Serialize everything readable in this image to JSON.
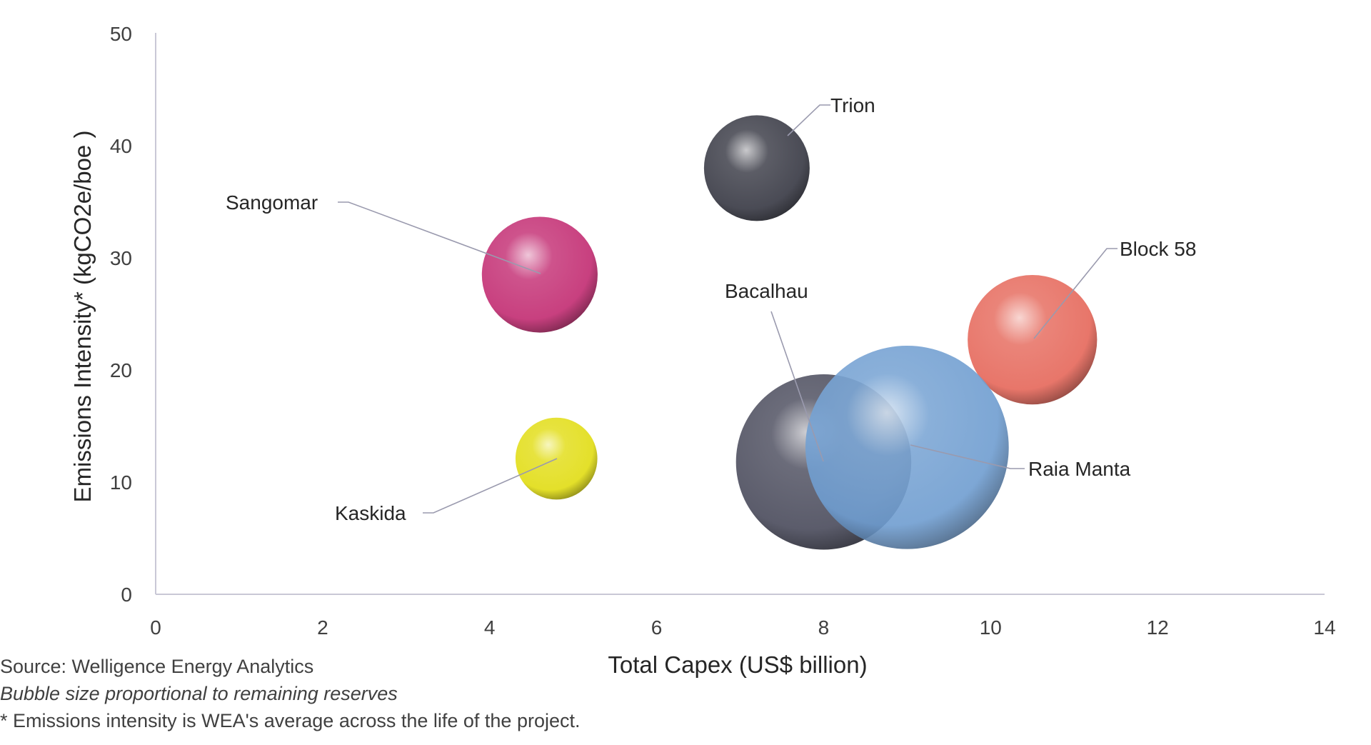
{
  "chart_data": {
    "type": "scatter",
    "subtype": "bubble",
    "title": "",
    "xlabel": "Total Capex (US$ billion)",
    "ylabel": "Emissions Intensity* (kgCO2e/boe )",
    "xlim": [
      0,
      14
    ],
    "ylim": [
      0,
      50
    ],
    "x_ticks": [
      0,
      2,
      4,
      6,
      8,
      10,
      12,
      14
    ],
    "y_ticks": [
      0,
      10,
      20,
      30,
      40,
      50
    ],
    "grid": false,
    "legend": "none",
    "points": [
      {
        "label": "Trion",
        "x": 7.2,
        "y": 38,
        "size": 1.0,
        "color": "#4a4b55"
      },
      {
        "label": "Sangomar",
        "x": 4.6,
        "y": 28.5,
        "size": 1.2,
        "color": "#c8407f"
      },
      {
        "label": "Block 58",
        "x": 10.5,
        "y": 22.7,
        "size": 1.5,
        "color": "#e8766a"
      },
      {
        "label": "Kaskida",
        "x": 4.8,
        "y": 12.1,
        "size": 0.6,
        "color": "#e4e02a"
      },
      {
        "label": "Bacalhau",
        "x": 8.0,
        "y": 11.8,
        "size": 2.75,
        "color": "#5b5c6b"
      },
      {
        "label": "Raia Manta",
        "x": 9.0,
        "y": 13.1,
        "size": 3.7,
        "color": "#6f9dd0"
      }
    ]
  },
  "footnotes": {
    "source": "Source: Welligence Energy Analytics",
    "bubble_note": "Bubble size proportional to remaining reserves",
    "emissions_note": "* Emissions intensity is WEA's average across the life of the project."
  },
  "colors": {
    "axis": "#c9c8d6",
    "leader": "#9a9aae",
    "text": "#262626"
  }
}
